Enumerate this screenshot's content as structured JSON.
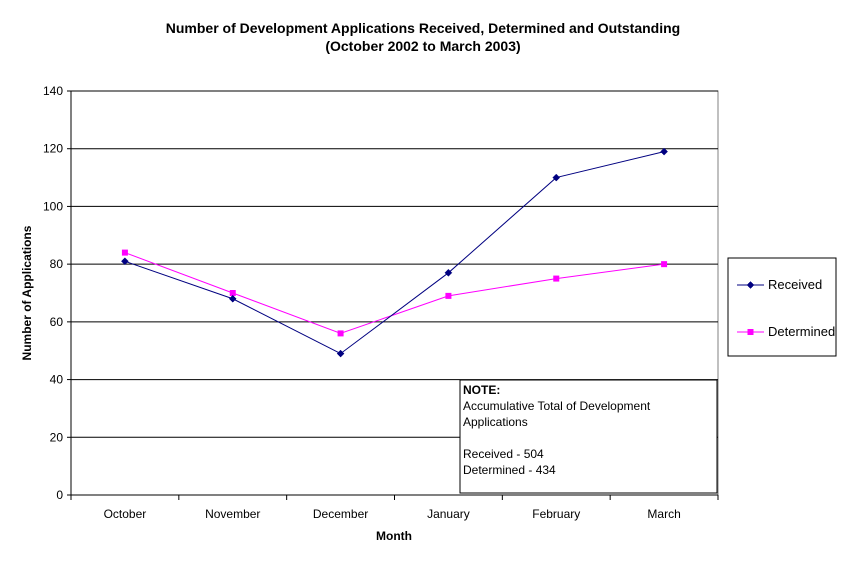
{
  "chart_data": {
    "type": "line",
    "title": "Number of Development Applications Received, Determined and Outstanding",
    "subtitle": "(October 2002 to March 2003)",
    "xlabel": "Month",
    "ylabel": "Number of Applications",
    "categories": [
      "October",
      "November",
      "December",
      "January",
      "February",
      "March"
    ],
    "ylim": [
      0,
      140
    ],
    "yticks": [
      "0",
      "20",
      "40",
      "60",
      "80",
      "100",
      "120",
      "140"
    ],
    "grid": true,
    "legend_position": "right",
    "series": [
      {
        "name": "Received",
        "color": "#000080",
        "marker": "diamond",
        "values": [
          81,
          68,
          49,
          77,
          110,
          119
        ]
      },
      {
        "name": "Determined",
        "color": "#ff00ff",
        "marker": "square",
        "values": [
          84,
          70,
          56,
          69,
          75,
          80
        ]
      }
    ],
    "note": {
      "heading": "NOTE:",
      "line1": "Accumulative Total of Development",
      "line2": "Applications",
      "line3": "Received - 504",
      "line4": "Determined - 434"
    }
  }
}
